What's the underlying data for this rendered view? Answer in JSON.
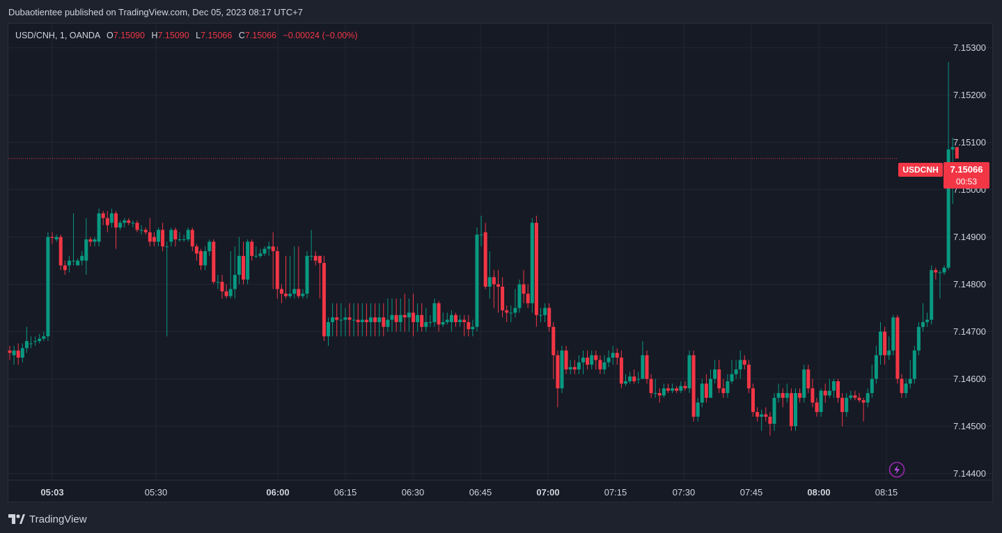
{
  "header": {
    "publish_text": "Dubaotientee published on TradingView.com, Dec 05, 2023 08:17 UTC+7"
  },
  "legend": {
    "symbol": "USD/CNH, 1, OANDA",
    "o_label": "O",
    "o_value": "7.15090",
    "h_label": "H",
    "h_value": "7.15090",
    "l_label": "L",
    "l_value": "7.15066",
    "c_label": "C",
    "c_value": "7.15066",
    "change": "−0.00024 (−0.00%)"
  },
  "price_tag": {
    "symbol": "USDCNH",
    "price": "7.15066",
    "countdown": "00:53"
  },
  "footer": {
    "brand": "TradingView"
  },
  "colors": {
    "up": "#089981",
    "down": "#f23645",
    "grid": "#232733",
    "text": "#d1d4dc",
    "background": "#161a25"
  },
  "chart_data": {
    "type": "candlestick",
    "x_ticks": [
      {
        "label": "05:03",
        "bold": true
      },
      {
        "label": "05:30",
        "bold": false
      },
      {
        "label": "06:00",
        "bold": true
      },
      {
        "label": "06:15",
        "bold": false
      },
      {
        "label": "06:30",
        "bold": false
      },
      {
        "label": "06:45",
        "bold": false
      },
      {
        "label": "07:00",
        "bold": true
      },
      {
        "label": "07:15",
        "bold": false
      },
      {
        "label": "07:30",
        "bold": false
      },
      {
        "label": "07:45",
        "bold": false
      },
      {
        "label": "08:00",
        "bold": true
      },
      {
        "label": "08:15",
        "bold": false
      }
    ],
    "y_ticks": [
      "7.15300",
      "7.15200",
      "7.15100",
      "7.15000",
      "7.14900",
      "7.14800",
      "7.14700",
      "7.14600",
      "7.14500",
      "7.14400"
    ],
    "ylim": [
      7.14386,
      7.15351
    ],
    "last_price": 7.15066,
    "candles": [
      [
        7.1466,
        7.14655,
        7.1467,
        7.1464
      ],
      [
        7.1465,
        7.1466,
        7.1467,
        7.1463
      ],
      [
        7.1466,
        7.14645,
        7.14675,
        7.1463
      ],
      [
        7.14645,
        7.14665,
        7.14675,
        7.14635
      ],
      [
        7.14665,
        7.1468,
        7.1471,
        7.14655
      ],
      [
        7.14675,
        7.14675,
        7.1469,
        7.14665
      ],
      [
        7.1468,
        7.1468,
        7.1469,
        7.1467
      ],
      [
        7.1468,
        7.14685,
        7.14695,
        7.14675
      ],
      [
        7.14685,
        7.1469,
        7.147,
        7.1468
      ],
      [
        7.1469,
        7.149,
        7.1491,
        7.1468
      ],
      [
        7.149,
        7.14898,
        7.1491,
        7.14885
      ],
      [
        7.14895,
        7.149,
        7.14905,
        7.1489
      ],
      [
        7.149,
        7.1484,
        7.14905,
        7.1483
      ],
      [
        7.1484,
        7.1483,
        7.1485,
        7.1482
      ],
      [
        7.1484,
        7.1485,
        7.1486,
        7.14825
      ],
      [
        7.1485,
        7.1485,
        7.1495,
        7.1484
      ],
      [
        7.1484,
        7.1485,
        7.14855,
        7.1484
      ],
      [
        7.1485,
        7.1486,
        7.1487,
        7.1484
      ],
      [
        7.1485,
        7.14895,
        7.1494,
        7.1482
      ],
      [
        7.14895,
        7.1489,
        7.149,
        7.1488
      ],
      [
        7.1489,
        7.14895,
        7.149,
        7.1488
      ],
      [
        7.1489,
        7.1495,
        7.1496,
        7.1488
      ],
      [
        7.1495,
        7.1494,
        7.14955,
        7.14925
      ],
      [
        7.1494,
        7.14925,
        7.14955,
        7.1491
      ],
      [
        7.1493,
        7.1495,
        7.1496,
        7.1492
      ],
      [
        7.1495,
        7.1492,
        7.14955,
        7.14875
      ],
      [
        7.1492,
        7.1493,
        7.14935,
        7.14915
      ],
      [
        7.1493,
        7.14935,
        7.1494,
        7.1492
      ],
      [
        7.14935,
        7.1493,
        7.1494,
        7.14925
      ],
      [
        7.1493,
        7.1493,
        7.14935,
        7.1492
      ],
      [
        7.1493,
        7.14915,
        7.14935,
        7.1491
      ],
      [
        7.14915,
        7.14915,
        7.14925,
        7.14905
      ],
      [
        7.14915,
        7.1491,
        7.1492,
        7.14905
      ],
      [
        7.1491,
        7.1489,
        7.1494,
        7.1488
      ],
      [
        7.149,
        7.1489,
        7.1491,
        7.1488
      ],
      [
        7.1489,
        7.14915,
        7.1492,
        7.1488
      ],
      [
        7.14915,
        7.1488,
        7.1493,
        7.1487
      ],
      [
        7.1488,
        7.1488,
        7.1489,
        7.1469
      ],
      [
        7.1489,
        7.14915,
        7.1492,
        7.1488
      ],
      [
        7.14915,
        7.14895,
        7.1492,
        7.1488
      ],
      [
        7.14895,
        7.14895,
        7.1491,
        7.1489
      ],
      [
        7.14895,
        7.14895,
        7.14905,
        7.1489
      ],
      [
        7.14895,
        7.14915,
        7.1492,
        7.1489
      ],
      [
        7.14915,
        7.1488,
        7.1492,
        7.1487
      ],
      [
        7.1488,
        7.14865,
        7.14885,
        7.1485
      ],
      [
        7.1487,
        7.1484,
        7.14875,
        7.1483
      ],
      [
        7.1484,
        7.1487,
        7.1488,
        7.1483
      ],
      [
        7.1487,
        7.1489,
        7.14895,
        7.1486
      ],
      [
        7.1489,
        7.14805,
        7.14895,
        7.148
      ],
      [
        7.14805,
        7.14805,
        7.1482,
        7.1479
      ],
      [
        7.14805,
        7.14785,
        7.1482,
        7.1477
      ],
      [
        7.14785,
        7.14775,
        7.148,
        7.1477
      ],
      [
        7.14775,
        7.1479,
        7.1487,
        7.1477
      ],
      [
        7.1479,
        7.1482,
        7.1488,
        7.1477
      ],
      [
        7.1482,
        7.1486,
        7.149,
        7.148
      ],
      [
        7.1486,
        7.1481,
        7.1489,
        7.148
      ],
      [
        7.1481,
        7.1489,
        7.14895,
        7.148
      ],
      [
        7.1489,
        7.1486,
        7.14895,
        7.1485
      ],
      [
        7.1486,
        7.1486,
        7.1488,
        7.14855
      ],
      [
        7.1486,
        7.14865,
        7.14875,
        7.14855
      ],
      [
        7.14865,
        7.14875,
        7.1488,
        7.1486
      ],
      [
        7.14875,
        7.1488,
        7.1489,
        7.1486
      ],
      [
        7.1488,
        7.1487,
        7.1491,
        7.1479
      ],
      [
        7.1487,
        7.1479,
        7.1488,
        7.1477
      ],
      [
        7.1479,
        7.1478,
        7.148,
        7.1476
      ],
      [
        7.1478,
        7.14775,
        7.1486,
        7.1477
      ],
      [
        7.14775,
        7.1478,
        7.1486,
        7.1477
      ],
      [
        7.1478,
        7.1479,
        7.1488,
        7.1477
      ],
      [
        7.1479,
        7.14775,
        7.1488,
        7.1477
      ],
      [
        7.14775,
        7.1478,
        7.1479,
        7.1477
      ],
      [
        7.1478,
        7.1486,
        7.1487,
        7.1477
      ],
      [
        7.1486,
        7.1486,
        7.14915,
        7.1485
      ],
      [
        7.1486,
        7.1485,
        7.1487,
        7.1484
      ],
      [
        7.1486,
        7.14845,
        7.1486,
        7.1477
      ],
      [
        7.14845,
        7.1469,
        7.1486,
        7.1468
      ],
      [
        7.1469,
        7.1472,
        7.1473,
        7.1467
      ],
      [
        7.1472,
        7.1473,
        7.1476,
        7.1469
      ],
      [
        7.1473,
        7.14725,
        7.1476,
        7.1469
      ],
      [
        7.14725,
        7.14725,
        7.1476,
        7.1469
      ],
      [
        7.14725,
        7.1473,
        7.1475,
        7.1469
      ],
      [
        7.1473,
        7.14725,
        7.1476,
        7.1469
      ],
      [
        7.14725,
        7.14725,
        7.1476,
        7.1469
      ],
      [
        7.14725,
        7.1472,
        7.1476,
        7.1469
      ],
      [
        7.1472,
        7.14725,
        7.1476,
        7.1469
      ],
      [
        7.14725,
        7.1472,
        7.1476,
        7.1469
      ],
      [
        7.1472,
        7.1473,
        7.1476,
        7.1469
      ],
      [
        7.1473,
        7.1472,
        7.1476,
        7.1469
      ],
      [
        7.1472,
        7.1473,
        7.1476,
        7.1469
      ],
      [
        7.1473,
        7.1471,
        7.1476,
        7.1469
      ],
      [
        7.1471,
        7.14725,
        7.1477,
        7.147
      ],
      [
        7.14725,
        7.14735,
        7.1477,
        7.147
      ],
      [
        7.14735,
        7.1472,
        7.1477,
        7.147
      ],
      [
        7.1472,
        7.14735,
        7.1477,
        7.147
      ],
      [
        7.14735,
        7.1473,
        7.1478,
        7.147
      ],
      [
        7.1473,
        7.1474,
        7.1477,
        7.147
      ],
      [
        7.1474,
        7.1472,
        7.1478,
        7.1469
      ],
      [
        7.1472,
        7.14735,
        7.1476,
        7.147
      ],
      [
        7.14735,
        7.1471,
        7.1476,
        7.147
      ],
      [
        7.1471,
        7.1472,
        7.1475,
        7.147
      ],
      [
        7.1472,
        7.1472,
        7.14735,
        7.1471
      ],
      [
        7.1472,
        7.1476,
        7.1477,
        7.1471
      ],
      [
        7.1476,
        7.14715,
        7.14765,
        7.147
      ],
      [
        7.14715,
        7.1472,
        7.1474,
        7.1471
      ],
      [
        7.1472,
        7.14725,
        7.1474,
        7.14715
      ],
      [
        7.1472,
        7.14735,
        7.14745,
        7.147
      ],
      [
        7.14735,
        7.1472,
        7.1474,
        7.1471
      ],
      [
        7.1472,
        7.14725,
        7.14735,
        7.1471
      ],
      [
        7.14725,
        7.1472,
        7.14735,
        7.1469
      ],
      [
        7.1472,
        7.14705,
        7.14735,
        7.1469
      ],
      [
        7.14705,
        7.1471,
        7.14725,
        7.1469
      ],
      [
        7.1471,
        7.14905,
        7.1492,
        7.147
      ],
      [
        7.14905,
        7.14905,
        7.14945,
        7.1488
      ],
      [
        7.1491,
        7.14795,
        7.1493,
        7.1479
      ],
      [
        7.14795,
        7.14815,
        7.1487,
        7.1477
      ],
      [
        7.14815,
        7.148,
        7.1483,
        7.1475
      ],
      [
        7.148,
        7.14795,
        7.1483,
        7.1474
      ],
      [
        7.14795,
        7.14745,
        7.14815,
        7.1473
      ],
      [
        7.14745,
        7.1474,
        7.14755,
        7.1472
      ],
      [
        7.1474,
        7.1474,
        7.14755,
        7.1472
      ],
      [
        7.1474,
        7.1475,
        7.1479,
        7.1473
      ],
      [
        7.1475,
        7.148,
        7.1481,
        7.1474
      ],
      [
        7.148,
        7.1478,
        7.1483,
        7.1476
      ],
      [
        7.1478,
        7.1476,
        7.148,
        7.1475
      ],
      [
        7.1476,
        7.1493,
        7.1494,
        7.1474
      ],
      [
        7.1493,
        7.14735,
        7.14945,
        7.1471
      ],
      [
        7.14735,
        7.14735,
        7.1475,
        7.1472
      ],
      [
        7.14735,
        7.1475,
        7.1476,
        7.1472
      ],
      [
        7.1475,
        7.1471,
        7.1476,
        7.147
      ],
      [
        7.1471,
        7.1465,
        7.1472,
        7.146
      ],
      [
        7.1465,
        7.1458,
        7.1466,
        7.1454
      ],
      [
        7.1458,
        7.1466,
        7.1467,
        7.1457
      ],
      [
        7.1466,
        7.1462,
        7.1467,
        7.1461
      ],
      [
        7.1462,
        7.14625,
        7.1464,
        7.1461
      ],
      [
        7.14625,
        7.1462,
        7.1464,
        7.1461
      ],
      [
        7.1462,
        7.14635,
        7.1465,
        7.1461
      ],
      [
        7.14635,
        7.14645,
        7.1466,
        7.1461
      ],
      [
        7.14645,
        7.1463,
        7.1466,
        7.1462
      ],
      [
        7.1463,
        7.1465,
        7.1466,
        7.1462
      ],
      [
        7.1465,
        7.1464,
        7.1466,
        7.1462
      ],
      [
        7.1464,
        7.1462,
        7.1465,
        7.1461
      ],
      [
        7.1462,
        7.14635,
        7.1465,
        7.1461
      ],
      [
        7.14635,
        7.14645,
        7.1466,
        7.14625
      ],
      [
        7.14645,
        7.14655,
        7.1467,
        7.1463
      ],
      [
        7.14655,
        7.14645,
        7.14665,
        7.1463
      ],
      [
        7.14645,
        7.1459,
        7.1466,
        7.1458
      ],
      [
        7.1459,
        7.14595,
        7.1461,
        7.14585
      ],
      [
        7.14595,
        7.14605,
        7.14615,
        7.1459
      ],
      [
        7.14605,
        7.14595,
        7.1462,
        7.1459
      ],
      [
        7.146,
        7.146,
        7.14615,
        7.1459
      ],
      [
        7.146,
        7.1465,
        7.1468,
        7.146
      ],
      [
        7.1465,
        7.146,
        7.1466,
        7.1459
      ],
      [
        7.146,
        7.1457,
        7.1461,
        7.1456
      ],
      [
        7.1457,
        7.1457,
        7.146,
        7.1456
      ],
      [
        7.1457,
        7.14565,
        7.1458,
        7.1455
      ],
      [
        7.14565,
        7.1458,
        7.1459,
        7.1456
      ],
      [
        7.1458,
        7.14575,
        7.1459,
        7.1457
      ],
      [
        7.14575,
        7.1458,
        7.1459,
        7.1457
      ],
      [
        7.1458,
        7.14575,
        7.14585,
        7.1457
      ],
      [
        7.14575,
        7.14585,
        7.14595,
        7.1457
      ],
      [
        7.14585,
        7.1458,
        7.14595,
        7.14575
      ],
      [
        7.1458,
        7.1465,
        7.1466,
        7.1457
      ],
      [
        7.1465,
        7.1452,
        7.1466,
        7.1451
      ],
      [
        7.1452,
        7.1455,
        7.1456,
        7.1451
      ],
      [
        7.1455,
        7.1459,
        7.146,
        7.1454
      ],
      [
        7.1459,
        7.1456,
        7.1461,
        7.1455
      ],
      [
        7.1456,
        7.146,
        7.1462,
        7.1456
      ],
      [
        7.146,
        7.1462,
        7.1464,
        7.1459
      ],
      [
        7.1462,
        7.1458,
        7.1464,
        7.1457
      ],
      [
        7.1458,
        7.1457,
        7.146,
        7.1456
      ],
      [
        7.1457,
        7.14595,
        7.1461,
        7.1456
      ],
      [
        7.14595,
        7.1461,
        7.1464,
        7.1459
      ],
      [
        7.1461,
        7.1462,
        7.1464,
        7.146
      ],
      [
        7.1462,
        7.1464,
        7.1466,
        7.146
      ],
      [
        7.1464,
        7.1463,
        7.1465,
        7.1462
      ],
      [
        7.1463,
        7.1458,
        7.1464,
        7.1457
      ],
      [
        7.1458,
        7.1453,
        7.1459,
        7.1452
      ],
      [
        7.1453,
        7.1452,
        7.1454,
        7.1451
      ],
      [
        7.1452,
        7.14525,
        7.14535,
        7.1449
      ],
      [
        7.14525,
        7.1452,
        7.1454,
        7.1451
      ],
      [
        7.1452,
        7.14505,
        7.1453,
        7.1448
      ],
      [
        7.14505,
        7.1456,
        7.1457,
        7.1449
      ],
      [
        7.1456,
        7.1457,
        7.1459,
        7.1455
      ],
      [
        7.1457,
        7.1456,
        7.1458,
        7.1454
      ],
      [
        7.1456,
        7.1457,
        7.1459,
        7.1455
      ],
      [
        7.1457,
        7.145,
        7.1458,
        7.1449
      ],
      [
        7.145,
        7.1457,
        7.1458,
        7.1449
      ],
      [
        7.1457,
        7.1456,
        7.1458,
        7.1455
      ],
      [
        7.1456,
        7.1462,
        7.1463,
        7.1455
      ],
      [
        7.1462,
        7.1458,
        7.1463,
        7.1457
      ],
      [
        7.1458,
        7.1455,
        7.146,
        7.1454
      ],
      [
        7.1455,
        7.1453,
        7.1456,
        7.1452
      ],
      [
        7.1453,
        7.14575,
        7.1458,
        7.1452
      ],
      [
        7.14575,
        7.14565,
        7.1459,
        7.1455
      ],
      [
        7.14565,
        7.14575,
        7.146,
        7.1456
      ],
      [
        7.14575,
        7.14595,
        7.146,
        7.1456
      ],
      [
        7.14595,
        7.1456,
        7.146,
        7.1455
      ],
      [
        7.1456,
        7.1453,
        7.1457,
        7.145
      ],
      [
        7.1453,
        7.1456,
        7.1457,
        7.1452
      ],
      [
        7.1456,
        7.14565,
        7.14575,
        7.14555
      ],
      [
        7.14565,
        7.1456,
        7.14575,
        7.14555
      ],
      [
        7.1456,
        7.14555,
        7.1457,
        7.1455
      ],
      [
        7.14555,
        7.1455,
        7.1456,
        7.1451
      ],
      [
        7.1455,
        7.1457,
        7.1458,
        7.1454
      ],
      [
        7.1457,
        7.146,
        7.1463,
        7.1456
      ],
      [
        7.146,
        7.1465,
        7.1467,
        7.1459
      ],
      [
        7.1465,
        7.147,
        7.1472,
        7.1463
      ],
      [
        7.147,
        7.1465,
        7.1471,
        7.1463
      ],
      [
        7.1465,
        7.1466,
        7.1469,
        7.1464
      ],
      [
        7.1466,
        7.1473,
        7.14735,
        7.1465
      ],
      [
        7.1473,
        7.146,
        7.14735,
        7.1459
      ],
      [
        7.146,
        7.1457,
        7.1461,
        7.1456
      ],
      [
        7.1457,
        7.1459,
        7.146,
        7.1456
      ],
      [
        7.1459,
        7.146,
        7.1464,
        7.1458
      ],
      [
        7.146,
        7.1466,
        7.1467,
        7.1459
      ],
      [
        7.1466,
        7.1471,
        7.1472,
        7.1465
      ],
      [
        7.1471,
        7.1472,
        7.1476,
        7.147
      ],
      [
        7.1472,
        7.14725,
        7.1474,
        7.1471
      ],
      [
        7.14725,
        7.1483,
        7.1484,
        7.14715
      ],
      [
        7.1483,
        7.14825,
        7.14835,
        7.1481
      ],
      [
        7.14825,
        7.14825,
        7.1483,
        7.1477
      ],
      [
        7.14825,
        7.14835,
        7.1484,
        7.1482
      ],
      [
        7.14835,
        7.15085,
        7.1527,
        7.1483
      ],
      [
        7.15085,
        7.1509,
        7.1511,
        7.1497
      ],
      [
        7.1509,
        7.15066,
        7.1509,
        7.15066
      ]
    ]
  }
}
